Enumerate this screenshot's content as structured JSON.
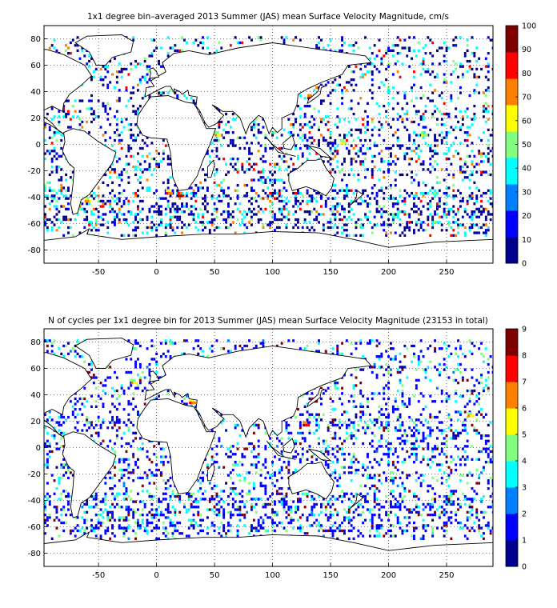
{
  "colormap": [
    "#00008f",
    "#0000ff",
    "#0080ff",
    "#00ffff",
    "#80ff80",
    "#ffff00",
    "#ff8000",
    "#ff0000",
    "#800000"
  ],
  "land_color": "#ffffff",
  "coast_color": "#000000",
  "chart_data": [
    {
      "type": "heatmap",
      "title": "1x1 degree bin–averaged 2013 Summer (JAS) mean Surface Velocity Magnitude, cm/s",
      "xlim": [
        -97,
        290
      ],
      "ylim": [
        -90,
        90
      ],
      "xticks": [
        "-50",
        "0",
        "50",
        "100",
        "150",
        "200",
        "250"
      ],
      "xtick_values": [
        -50,
        0,
        50,
        100,
        150,
        200,
        250
      ],
      "yticks": [
        "80",
        "60",
        "40",
        "20",
        "0",
        "-20",
        "-40",
        "-60",
        "-80"
      ],
      "ytick_values": [
        80,
        60,
        40,
        20,
        0,
        -20,
        -40,
        -60,
        -80
      ],
      "grid": true,
      "colorbar": {
        "range": [
          0,
          100
        ],
        "ticks": [
          "0",
          "10",
          "20",
          "30",
          "40",
          "50",
          "60",
          "70",
          "80",
          "90",
          "100"
        ],
        "tick_values": [
          0,
          10,
          20,
          30,
          40,
          50,
          60,
          70,
          80,
          90,
          100
        ]
      },
      "hotspots": [
        {
          "lon": 20,
          "lat": -38,
          "value": 95
        },
        {
          "lon": 132,
          "lat": 36,
          "value": 90
        },
        {
          "lon": 10,
          "lat": -36,
          "value": 80
        },
        {
          "lon": -60,
          "lat": -42,
          "value": 75
        },
        {
          "lon": 52,
          "lat": 8,
          "value": 70
        },
        {
          "lon": 160,
          "lat": 2,
          "value": 65
        },
        {
          "lon": 230,
          "lat": 8,
          "value": 60
        },
        {
          "lon": 140,
          "lat": -5,
          "value": 60
        }
      ]
    },
    {
      "type": "heatmap",
      "title": "N of cycles per 1x1 degree bin for 2013 Summer (JAS) mean Surface Velocity Magnitude (23153 in total)",
      "total": 23153,
      "xlim": [
        -97,
        290
      ],
      "ylim": [
        -90,
        90
      ],
      "xticks": [
        "-50",
        "0",
        "50",
        "100",
        "150",
        "200",
        "250"
      ],
      "xtick_values": [
        -50,
        0,
        50,
        100,
        150,
        200,
        250
      ],
      "yticks": [
        "80",
        "60",
        "40",
        "20",
        "0",
        "-20",
        "-40",
        "-60",
        "-80"
      ],
      "ytick_values": [
        80,
        60,
        40,
        20,
        0,
        -20,
        -40,
        -60,
        -80
      ],
      "grid": true,
      "colorbar": {
        "range": [
          0,
          9
        ],
        "ticks": [
          "0",
          "1",
          "2",
          "3",
          "4",
          "5",
          "6",
          "7",
          "8",
          "9"
        ],
        "tick_values": [
          0,
          1,
          2,
          3,
          4,
          5,
          6,
          7,
          8,
          9
        ]
      },
      "hotspots": [
        {
          "lon": 135,
          "lat": 36,
          "value": 9
        },
        {
          "lon": 128,
          "lat": 18,
          "value": 8
        },
        {
          "lon": -20,
          "lat": 50,
          "value": 6
        },
        {
          "lon": 30,
          "lat": 35,
          "value": 7
        },
        {
          "lon": 270,
          "lat": 25,
          "value": 6
        }
      ]
    }
  ]
}
